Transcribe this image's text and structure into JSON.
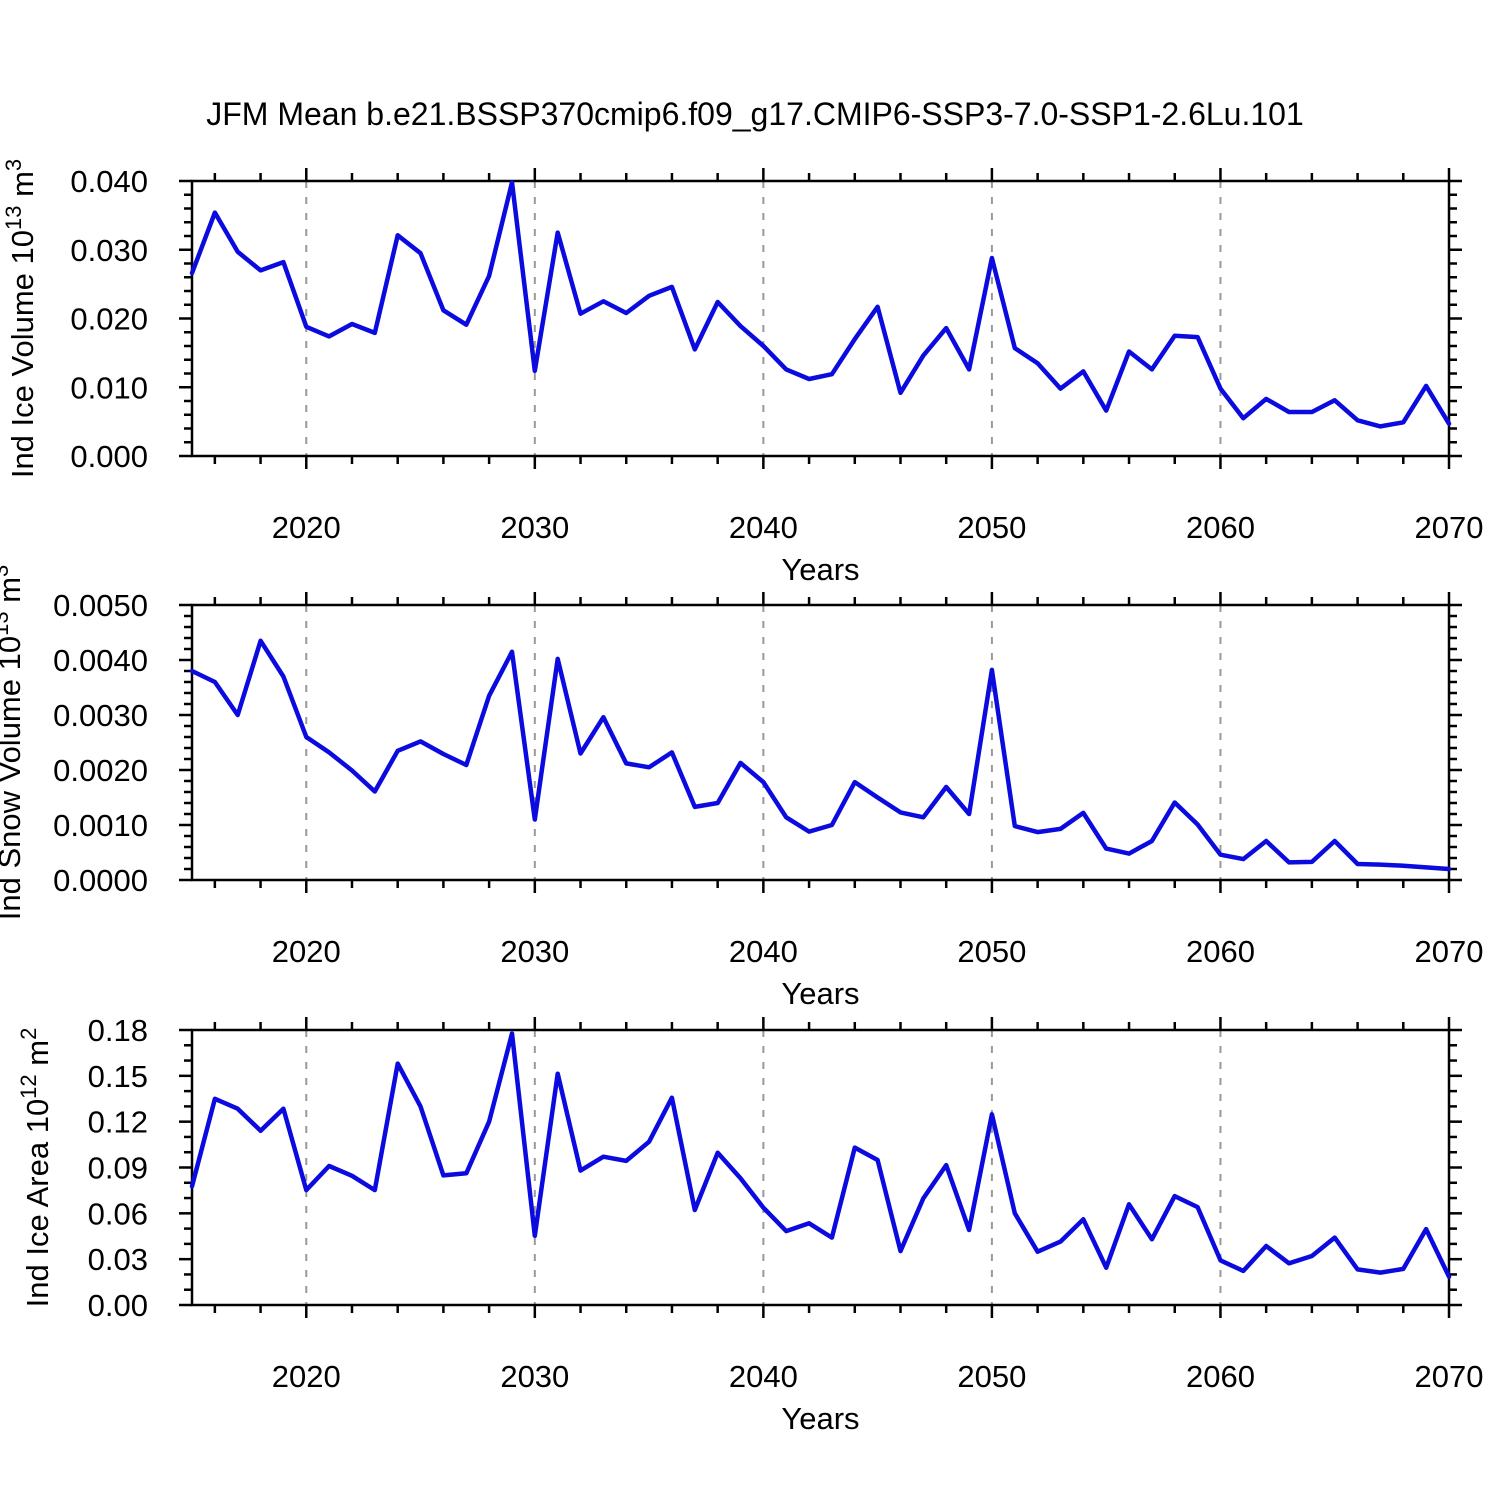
{
  "figure": {
    "title": "JFM Mean b.e21.BSSP370cmip6.f09_g17.CMIP6-SSP3-7.0-SSP1-2.6Lu.101",
    "background_color": "#ffffff",
    "axis_color": "#000000",
    "line_color": "#0b0be0",
    "grid_color": "#999999"
  },
  "chart_data": [
    {
      "type": "line",
      "title": "",
      "xlabel": "Years",
      "ylabel": "Ind Ice Volume 10^13 m^3",
      "ylabel_parts": [
        {
          "t": "Ind Ice Volume 10"
        },
        {
          "t": "13",
          "sup": true
        },
        {
          "t": " m"
        },
        {
          "t": "3",
          "sup": true
        }
      ],
      "xlim": [
        2015,
        2070
      ],
      "ylim": [
        0.0,
        0.04
      ],
      "ytick_step": 0.01,
      "ytick_minor": 0.002,
      "ytick_decimals": 3,
      "xticks": [
        2020,
        2030,
        2040,
        2050,
        2060,
        2070
      ],
      "xtick_minor_step": 2,
      "gridlines_x": [
        2020,
        2030,
        2040,
        2050,
        2060
      ],
      "grid": "vertical-dashed",
      "legend": "none",
      "x": [
        2015,
        2016,
        2017,
        2018,
        2019,
        2020,
        2021,
        2022,
        2023,
        2024,
        2025,
        2026,
        2027,
        2028,
        2029,
        2030,
        2031,
        2032,
        2033,
        2034,
        2035,
        2036,
        2037,
        2038,
        2039,
        2040,
        2041,
        2042,
        2043,
        2044,
        2045,
        2046,
        2047,
        2048,
        2049,
        2050,
        2051,
        2052,
        2053,
        2054,
        2055,
        2056,
        2057,
        2058,
        2059,
        2060,
        2061,
        2062,
        2063,
        2064,
        2065,
        2066,
        2067,
        2068,
        2069,
        2070
      ],
      "values": [
        0.0266,
        0.0354,
        0.0297,
        0.027,
        0.0282,
        0.0188,
        0.0174,
        0.0192,
        0.0179,
        0.0321,
        0.0295,
        0.0212,
        0.0191,
        0.0262,
        0.0398,
        0.0124,
        0.0325,
        0.0207,
        0.0225,
        0.0208,
        0.0233,
        0.0246,
        0.0155,
        0.0224,
        0.0189,
        0.016,
        0.0126,
        0.0112,
        0.0119,
        0.017,
        0.0217,
        0.0092,
        0.0146,
        0.0186,
        0.0126,
        0.0288,
        0.0157,
        0.0135,
        0.0098,
        0.0123,
        0.0066,
        0.0152,
        0.0126,
        0.0175,
        0.0173,
        0.0098,
        0.0055,
        0.0083,
        0.0064,
        0.0064,
        0.0081,
        0.0052,
        0.0043,
        0.0049,
        0.0102,
        0.0047
      ]
    },
    {
      "type": "line",
      "title": "",
      "xlabel": "Years",
      "ylabel": "Ind Snow Volume 10^13 m^3",
      "ylabel_parts": [
        {
          "t": "Ind Snow Volume 10"
        },
        {
          "t": "13",
          "sup": true
        },
        {
          "t": " m"
        },
        {
          "t": "3",
          "sup": true
        }
      ],
      "xlim": [
        2015,
        2070
      ],
      "ylim": [
        0.0,
        0.005
      ],
      "ytick_step": 0.001,
      "ytick_minor": 0.0002,
      "ytick_decimals": 4,
      "xticks": [
        2020,
        2030,
        2040,
        2050,
        2060,
        2070
      ],
      "xtick_minor_step": 2,
      "gridlines_x": [
        2020,
        2030,
        2040,
        2050,
        2060
      ],
      "grid": "vertical-dashed",
      "legend": "none",
      "x": [
        2015,
        2016,
        2017,
        2018,
        2019,
        2020,
        2021,
        2022,
        2023,
        2024,
        2025,
        2026,
        2027,
        2028,
        2029,
        2030,
        2031,
        2032,
        2033,
        2034,
        2035,
        2036,
        2037,
        2038,
        2039,
        2040,
        2041,
        2042,
        2043,
        2044,
        2045,
        2046,
        2047,
        2048,
        2049,
        2050,
        2051,
        2052,
        2053,
        2054,
        2055,
        2056,
        2057,
        2058,
        2059,
        2060,
        2061,
        2062,
        2063,
        2064,
        2065,
        2066,
        2067,
        2068,
        2069,
        2070
      ],
      "values": [
        0.0038,
        0.0036,
        0.003,
        0.00435,
        0.0037,
        0.0026,
        0.00232,
        0.00199,
        0.00161,
        0.00235,
        0.00252,
        0.00229,
        0.00209,
        0.00335,
        0.00415,
        0.0011,
        0.00402,
        0.0023,
        0.00296,
        0.00212,
        0.00205,
        0.00232,
        0.00133,
        0.0014,
        0.00213,
        0.00178,
        0.00114,
        0.00088,
        0.001,
        0.00178,
        0.0015,
        0.00123,
        0.00114,
        0.00169,
        0.0012,
        0.00382,
        0.00098,
        0.00087,
        0.00093,
        0.00122,
        0.00057,
        0.00048,
        0.00071,
        0.00141,
        0.00101,
        0.00046,
        0.00038,
        0.00071,
        0.00032,
        0.00033,
        0.00071,
        0.00029,
        0.00028,
        0.00026,
        0.00023,
        0.0002
      ]
    },
    {
      "type": "line",
      "title": "",
      "xlabel": "Years",
      "ylabel": "Ind Ice Area 10^12 m^2",
      "ylabel_parts": [
        {
          "t": "Ind Ice Area 10"
        },
        {
          "t": "12",
          "sup": true
        },
        {
          "t": " m"
        },
        {
          "t": "2",
          "sup": true
        }
      ],
      "xlim": [
        2015,
        2070
      ],
      "ylim": [
        0.0,
        0.18
      ],
      "ytick_step": 0.03,
      "ytick_minor": 0.01,
      "ytick_decimals": 2,
      "xticks": [
        2020,
        2030,
        2040,
        2050,
        2060,
        2070
      ],
      "xtick_minor_step": 2,
      "gridlines_x": [
        2020,
        2030,
        2040,
        2050,
        2060
      ],
      "grid": "vertical-dashed",
      "legend": "none",
      "x": [
        2015,
        2016,
        2017,
        2018,
        2019,
        2020,
        2021,
        2022,
        2023,
        2024,
        2025,
        2026,
        2027,
        2028,
        2029,
        2030,
        2031,
        2032,
        2033,
        2034,
        2035,
        2036,
        2037,
        2038,
        2039,
        2040,
        2041,
        2042,
        2043,
        2044,
        2045,
        2046,
        2047,
        2048,
        2049,
        2050,
        2051,
        2052,
        2053,
        2054,
        2055,
        2056,
        2057,
        2058,
        2059,
        2060,
        2061,
        2062,
        2063,
        2064,
        2065,
        2066,
        2067,
        2068,
        2069,
        2070
      ],
      "values": [
        0.0777,
        0.135,
        0.1285,
        0.114,
        0.1285,
        0.0752,
        0.091,
        0.0846,
        0.0752,
        0.158,
        0.13,
        0.0848,
        0.0862,
        0.12,
        0.1777,
        0.0453,
        0.1514,
        0.088,
        0.0971,
        0.0943,
        0.1069,
        0.1357,
        0.0622,
        0.0997,
        0.0829,
        0.0637,
        0.0484,
        0.0535,
        0.0441,
        0.103,
        0.0949,
        0.0353,
        0.0698,
        0.0916,
        0.0491,
        0.1248,
        0.06,
        0.0349,
        0.0415,
        0.0561,
        0.0244,
        0.0659,
        0.043,
        0.0713,
        0.0641,
        0.0292,
        0.0223,
        0.0386,
        0.0273,
        0.0321,
        0.0441,
        0.0233,
        0.0212,
        0.0236,
        0.0497,
        0.0185
      ]
    }
  ]
}
